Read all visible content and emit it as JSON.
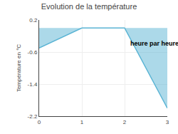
{
  "chart_data": {
    "type": "area",
    "title": "Evolution de la température",
    "ylabel": "Température en °C",
    "x": [
      0,
      1,
      2,
      3
    ],
    "values": [
      -0.5,
      0.0,
      0.0,
      -2.0
    ],
    "color": "#5ab4d4",
    "xlim": [
      0,
      3
    ],
    "xticks": [
      0,
      1,
      2,
      3
    ],
    "ylim": [
      -2.2,
      0.2
    ],
    "yticks": [
      0.2,
      -0.6,
      -1.4,
      -2.2
    ],
    "grid": true,
    "annotations": [
      {
        "text": "heure par heure",
        "x": 2.1,
        "y": -0.38
      }
    ]
  }
}
